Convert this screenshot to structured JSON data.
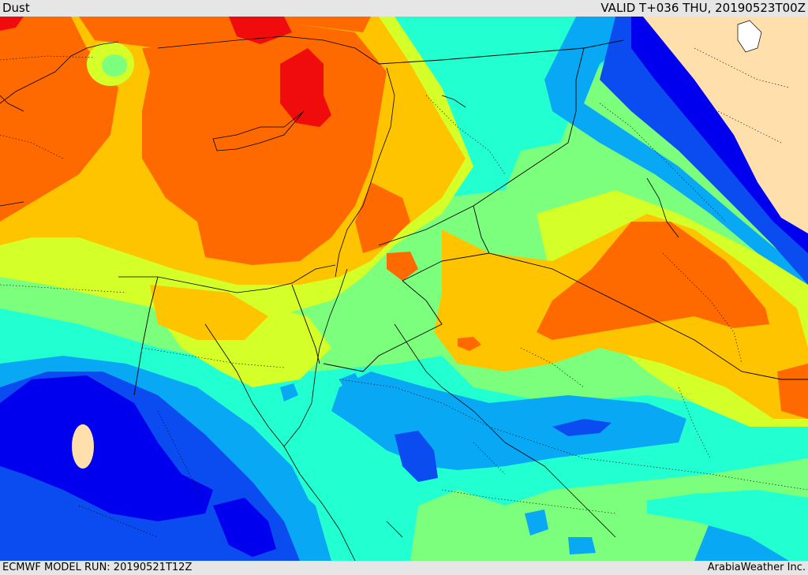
{
  "header": {
    "field_name": "Dust",
    "valid_time": "VALID T+036 THU, 20190523T00Z"
  },
  "footer": {
    "model_run": "ECMWF MODEL RUN: 20190521T12Z",
    "credit": "ArabiaWeather Inc."
  },
  "palette": {
    "land_clear": "#ffdfab",
    "navy": "#0000ee",
    "blue": "#0a4cf0",
    "light_blue": "#08a8f4",
    "cyan": "#22ffd0",
    "light_green": "#7cff7c",
    "yellow_green": "#d4ff28",
    "yellow": "#ffc400",
    "orange": "#ff6a00",
    "red": "#f00c0c"
  }
}
